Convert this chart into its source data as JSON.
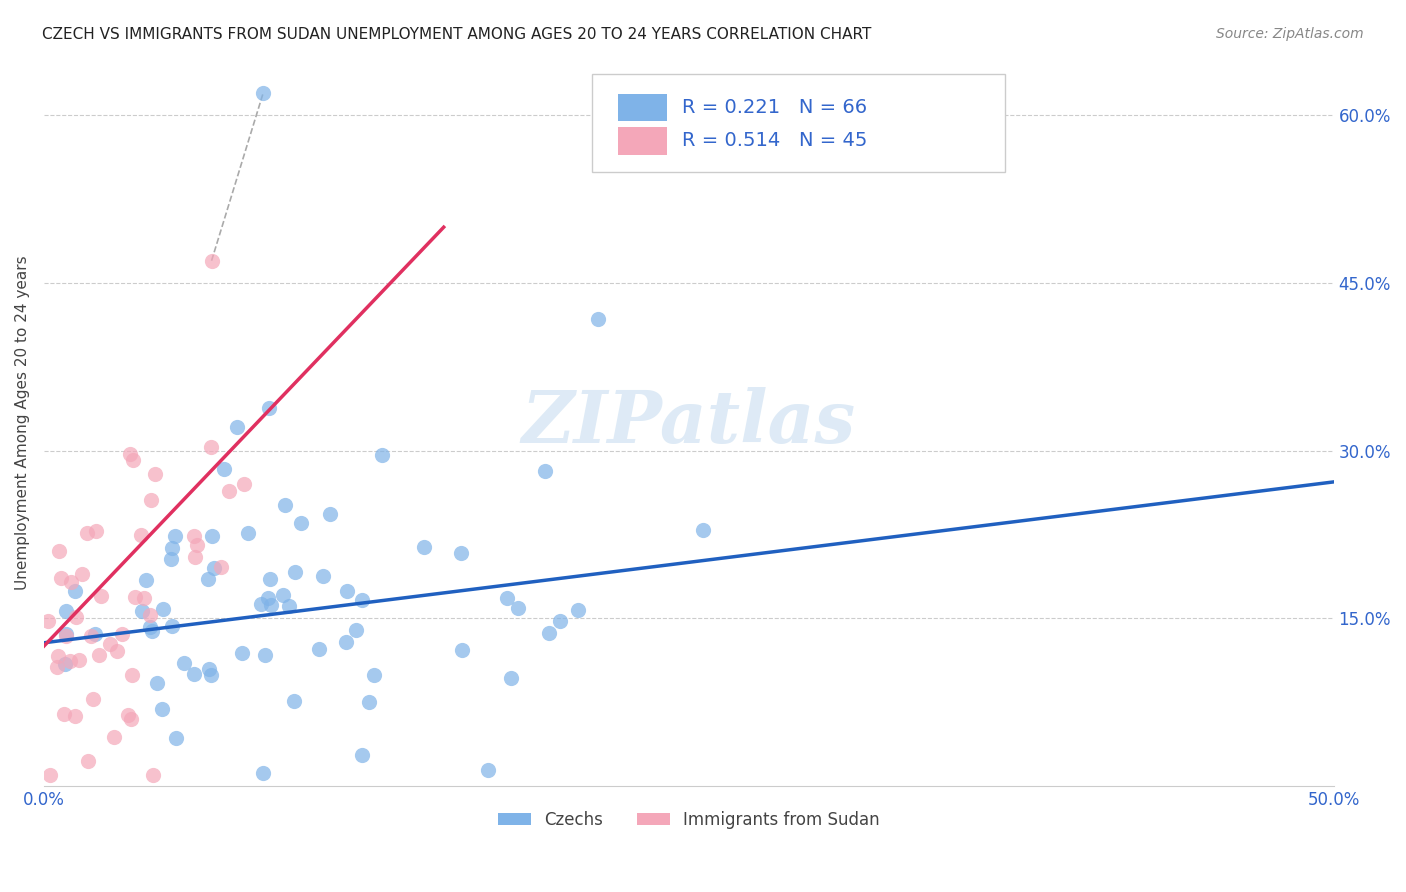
{
  "title": "CZECH VS IMMIGRANTS FROM SUDAN UNEMPLOYMENT AMONG AGES 20 TO 24 YEARS CORRELATION CHART",
  "source": "Source: ZipAtlas.com",
  "ylabel": "Unemployment Among Ages 20 to 24 years",
  "xlim": [
    0.0,
    0.5
  ],
  "ylim": [
    0.0,
    0.65
  ],
  "grid_color": "#cccccc",
  "background": "#ffffff",
  "watermark": "ZIPatlas",
  "czechs_color": "#7fb3e8",
  "sudan_color": "#f4a7b9",
  "czechs_line_color": "#2060c0",
  "sudan_line_color": "#e03060",
  "czechs_R": "0.221",
  "czechs_N": "66",
  "sudan_R": "0.514",
  "sudan_N": "45",
  "tick_color": "#3366cc",
  "label_color": "#444444",
  "source_color": "#888888"
}
